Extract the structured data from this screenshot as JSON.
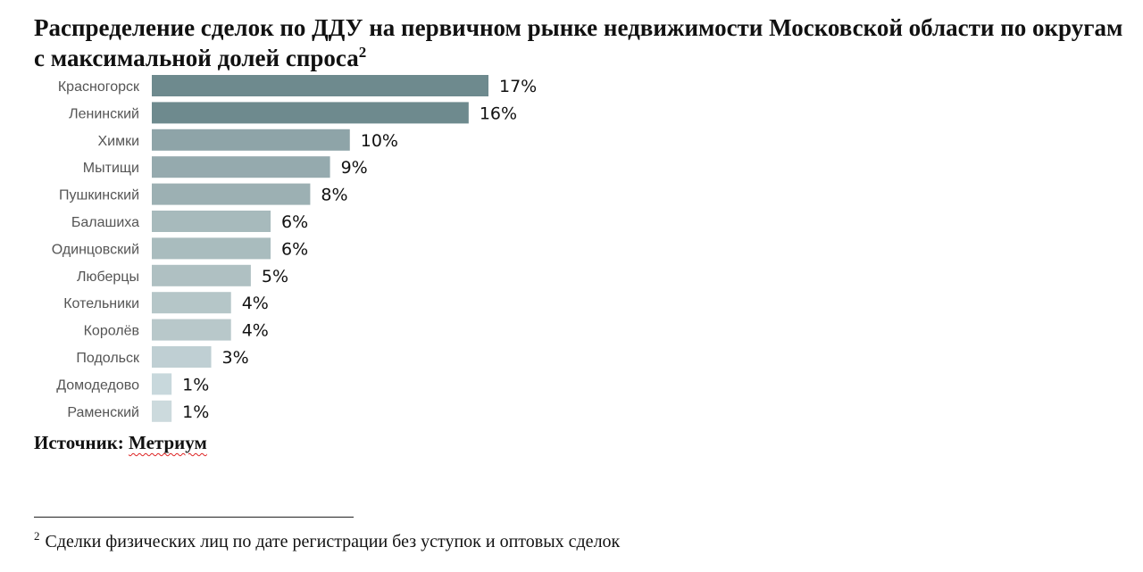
{
  "title": {
    "text": "Распределение сделок по ДДУ на первичном рынке недвижимости Московской области по округам с максимальной долей спроса",
    "footnote_marker": "2"
  },
  "chart_data": {
    "type": "bar",
    "orientation": "horizontal",
    "title": "Распределение сделок по ДДУ на первичном рынке недвижимости Московской области по округам с максимальной долей спроса",
    "categories": [
      "Красногорск",
      "Ленинский",
      "Химки",
      "Мытищи",
      "Пушкинский",
      "Балашиха",
      "Одинцовский",
      "Люберцы",
      "Котельники",
      "Королёв",
      "Подольск",
      "Домодедово",
      "Раменский"
    ],
    "values": [
      17,
      16,
      10,
      9,
      8,
      6,
      6,
      5,
      4,
      4,
      3,
      1,
      1
    ],
    "value_labels": [
      "17%",
      "16%",
      "10%",
      "9%",
      "8%",
      "6%",
      "6%",
      "5%",
      "4%",
      "4%",
      "3%",
      "1%",
      "1%"
    ],
    "unit": "%",
    "xlim": [
      0,
      17
    ],
    "grid": false,
    "legend": "none",
    "colors": [
      "#6e8a8e",
      "#6e8a8e",
      "#8ea4a8",
      "#95aaae",
      "#9cb0b3",
      "#a7babc",
      "#a9bcbe",
      "#afc0c2",
      "#b5c6c8",
      "#b8c8ca",
      "#bfcfd3",
      "#c8d8dc",
      "#ccdadd"
    ]
  },
  "source": {
    "label": "Источник:",
    "name": "Метриум"
  },
  "footnote": {
    "marker": "2",
    "text": "Сделки физических лиц по дате регистрации без уступок и оптовых сделок"
  }
}
